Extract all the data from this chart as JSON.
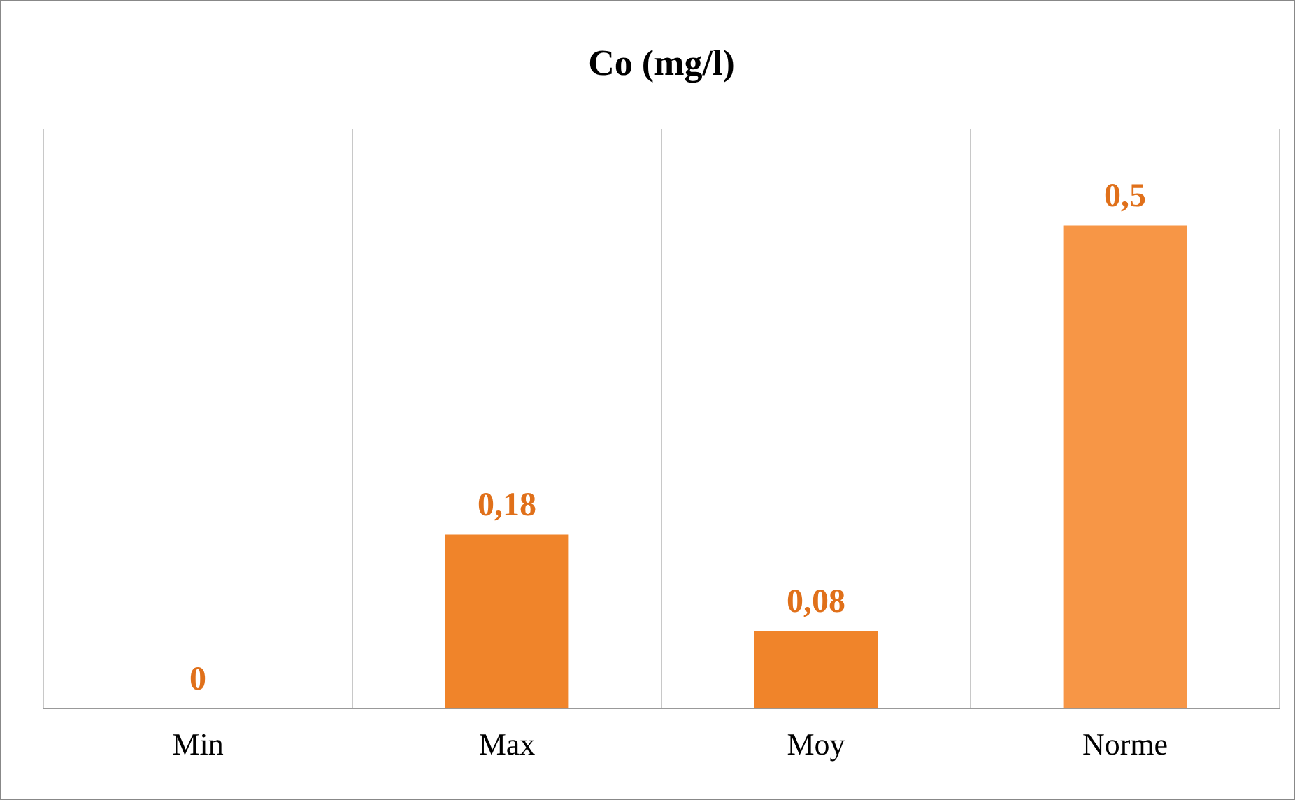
{
  "chart_data": {
    "type": "bar",
    "title": "Co (mg/l)",
    "categories": [
      "Min",
      "Max",
      "Moy",
      "Norme"
    ],
    "values": [
      0,
      0.18,
      0.08,
      0.5
    ],
    "colors": [
      "#f0842a",
      "#f0842a",
      "#f0842a",
      "#f79646"
    ],
    "value_labels": [
      "0",
      "0,18",
      "0,08",
      "0,5"
    ],
    "grid": "x",
    "legend": false
  }
}
